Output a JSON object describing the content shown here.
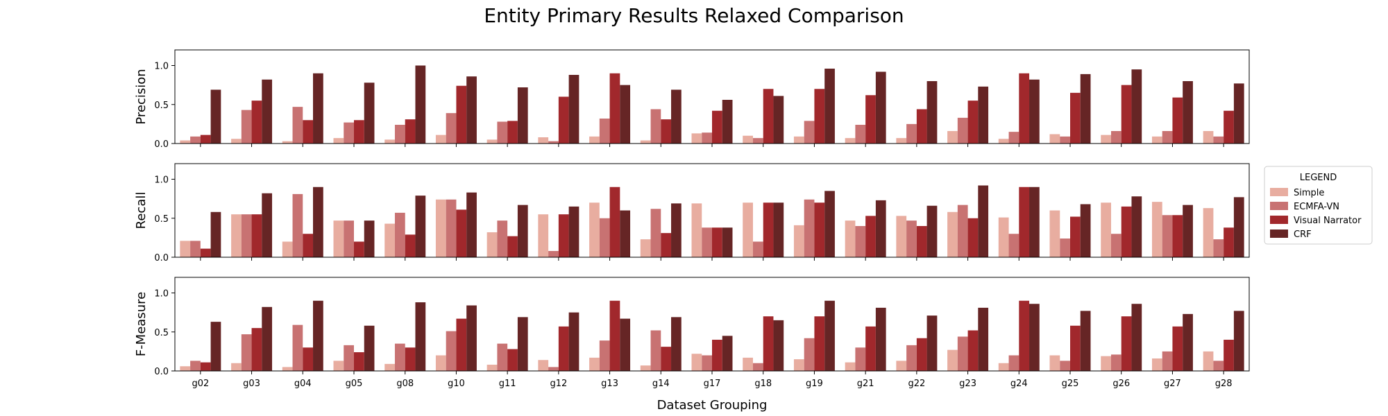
{
  "chart_data": {
    "type": "bar",
    "title": "Entity Primary Results Relaxed Comparison",
    "xlabel": "Dataset Grouping",
    "categories": [
      "g02",
      "g03",
      "g04",
      "g05",
      "g08",
      "g10",
      "g11",
      "g12",
      "g13",
      "g14",
      "g17",
      "g18",
      "g19",
      "g21",
      "g22",
      "g23",
      "g24",
      "g25",
      "g26",
      "g27",
      "g28"
    ],
    "ylim": [
      0,
      1.2
    ],
    "yticks": [
      "0.0",
      "0.5",
      "1.0"
    ],
    "legend": {
      "title": "LEGEND",
      "placement": "right",
      "entries": [
        "Simple",
        "ECMFA-VN",
        "Visual Narrator",
        "CRF"
      ]
    },
    "colors": [
      "#e8ada0",
      "#c87272",
      "#a1282c",
      "#662525"
    ],
    "panels": [
      {
        "ylabel": "Precision",
        "series": [
          {
            "name": "Simple",
            "values": [
              0.04,
              0.06,
              0.03,
              0.07,
              0.05,
              0.11,
              0.05,
              0.08,
              0.09,
              0.04,
              0.13,
              0.1,
              0.09,
              0.07,
              0.07,
              0.16,
              0.06,
              0.12,
              0.11,
              0.09,
              0.16
            ]
          },
          {
            "name": "ECMFA-VN",
            "values": [
              0.09,
              0.43,
              0.47,
              0.27,
              0.24,
              0.39,
              0.28,
              0.03,
              0.32,
              0.44,
              0.14,
              0.07,
              0.29,
              0.24,
              0.25,
              0.33,
              0.15,
              0.09,
              0.16,
              0.16,
              0.09
            ]
          },
          {
            "name": "Visual Narrator",
            "values": [
              0.11,
              0.55,
              0.3,
              0.3,
              0.31,
              0.74,
              0.29,
              0.6,
              0.9,
              0.31,
              0.42,
              0.7,
              0.7,
              0.62,
              0.44,
              0.55,
              0.9,
              0.65,
              0.75,
              0.59,
              0.42
            ]
          },
          {
            "name": "CRF",
            "values": [
              0.69,
              0.82,
              0.9,
              0.78,
              1.0,
              0.86,
              0.72,
              0.88,
              0.75,
              0.69,
              0.56,
              0.61,
              0.96,
              0.92,
              0.8,
              0.73,
              0.82,
              0.89,
              0.95,
              0.8,
              0.77
            ]
          }
        ]
      },
      {
        "ylabel": "Recall",
        "series": [
          {
            "name": "Simple",
            "values": [
              0.21,
              0.55,
              0.2,
              0.47,
              0.43,
              0.74,
              0.32,
              0.55,
              0.7,
              0.23,
              0.69,
              0.7,
              0.41,
              0.47,
              0.53,
              0.58,
              0.51,
              0.6,
              0.7,
              0.71,
              0.63
            ]
          },
          {
            "name": "ECMFA-VN",
            "values": [
              0.21,
              0.55,
              0.81,
              0.47,
              0.57,
              0.74,
              0.47,
              0.08,
              0.5,
              0.62,
              0.38,
              0.2,
              0.74,
              0.4,
              0.47,
              0.67,
              0.3,
              0.24,
              0.3,
              0.54,
              0.23
            ]
          },
          {
            "name": "Visual Narrator",
            "values": [
              0.11,
              0.55,
              0.3,
              0.2,
              0.29,
              0.61,
              0.27,
              0.55,
              0.9,
              0.31,
              0.38,
              0.7,
              0.7,
              0.53,
              0.4,
              0.5,
              0.9,
              0.52,
              0.65,
              0.54,
              0.38
            ]
          },
          {
            "name": "CRF",
            "values": [
              0.58,
              0.82,
              0.9,
              0.47,
              0.79,
              0.83,
              0.67,
              0.65,
              0.6,
              0.69,
              0.38,
              0.7,
              0.85,
              0.73,
              0.66,
              0.92,
              0.9,
              0.68,
              0.78,
              0.67,
              0.77
            ]
          }
        ]
      },
      {
        "ylabel": "F-Measure",
        "series": [
          {
            "name": "Simple",
            "values": [
              0.06,
              0.1,
              0.05,
              0.13,
              0.09,
              0.2,
              0.08,
              0.14,
              0.17,
              0.07,
              0.22,
              0.17,
              0.15,
              0.11,
              0.13,
              0.27,
              0.1,
              0.2,
              0.19,
              0.16,
              0.25
            ]
          },
          {
            "name": "ECMFA-VN",
            "values": [
              0.13,
              0.47,
              0.59,
              0.33,
              0.35,
              0.51,
              0.35,
              0.05,
              0.39,
              0.52,
              0.2,
              0.1,
              0.42,
              0.3,
              0.33,
              0.44,
              0.2,
              0.13,
              0.21,
              0.25,
              0.13
            ]
          },
          {
            "name": "Visual Narrator",
            "values": [
              0.11,
              0.55,
              0.3,
              0.24,
              0.3,
              0.67,
              0.28,
              0.57,
              0.9,
              0.31,
              0.4,
              0.7,
              0.7,
              0.57,
              0.42,
              0.52,
              0.9,
              0.58,
              0.7,
              0.57,
              0.4
            ]
          },
          {
            "name": "CRF",
            "values": [
              0.63,
              0.82,
              0.9,
              0.58,
              0.88,
              0.84,
              0.69,
              0.75,
              0.67,
              0.69,
              0.45,
              0.65,
              0.9,
              0.81,
              0.71,
              0.81,
              0.86,
              0.77,
              0.86,
              0.73,
              0.77
            ]
          }
        ]
      }
    ]
  }
}
